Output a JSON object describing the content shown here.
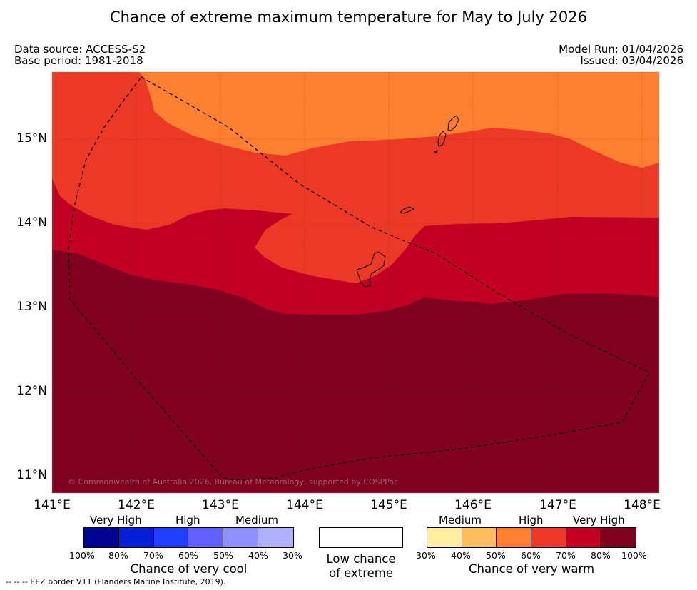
{
  "title": "Chance of extreme maximum temperature for May to July 2026",
  "meta": {
    "data_source": "Data source: ACCESS-S2",
    "base_period": "Base period: 1981-2018",
    "model_run": "Model Run: 01/04/2026",
    "issued": "Issued: 03/04/2026"
  },
  "map": {
    "extent": {
      "lon": [
        141.0,
        148.2
      ],
      "lat": [
        10.8,
        15.8
      ]
    },
    "lat_ticks": [
      {
        "value": 15,
        "label": "15°N"
      },
      {
        "value": 14,
        "label": "14°N"
      },
      {
        "value": 13,
        "label": "13°N"
      },
      {
        "value": 12,
        "label": "12°N"
      },
      {
        "value": 11,
        "label": "11°N"
      }
    ],
    "lon_ticks": [
      {
        "value": 141,
        "label": "141°E"
      },
      {
        "value": 142,
        "label": "142°E"
      },
      {
        "value": 143,
        "label": "143°E"
      },
      {
        "value": 144,
        "label": "144°E"
      },
      {
        "value": 145,
        "label": "145°E"
      },
      {
        "value": 146,
        "label": "146°E"
      },
      {
        "value": 147,
        "label": "147°E"
      },
      {
        "value": 148,
        "label": "148°E"
      }
    ],
    "copyright": "© Commonwealth of Australia 2026, Bureau of Meteorology, supported by COSPPac"
  },
  "colors": {
    "warm_50_60": "#fd8030",
    "warm_60_70": "#ec3926",
    "warm_70_80": "#c10023",
    "warm_80_100": "#800020",
    "cool": [
      "#000590",
      "#0320d6",
      "#2040ff",
      "#6060ff",
      "#9090ff",
      "#b0b0ff"
    ],
    "warm": [
      "#ffeda0",
      "#fdbd5c",
      "#fd8030",
      "#ec3926",
      "#c10023",
      "#800020"
    ]
  },
  "legend": {
    "cool": {
      "levels": [
        "Very High",
        "High",
        "Medium"
      ],
      "percents": [
        "100%",
        "80%",
        "70%",
        "60%",
        "50%",
        "40%",
        "30%"
      ],
      "caption": "Chance of very cool"
    },
    "neutral": {
      "caption_line1": "Low chance",
      "caption_line2": "of extreme"
    },
    "warm": {
      "levels": [
        "Medium",
        "High",
        "Very High"
      ],
      "percents": [
        "30%",
        "40%",
        "50%",
        "60%",
        "70%",
        "80%",
        "100%"
      ],
      "caption": "Chance of very warm"
    }
  },
  "footnote": "--  --  -- EEZ border V11 (Flanders Marine Institute, 2019)."
}
